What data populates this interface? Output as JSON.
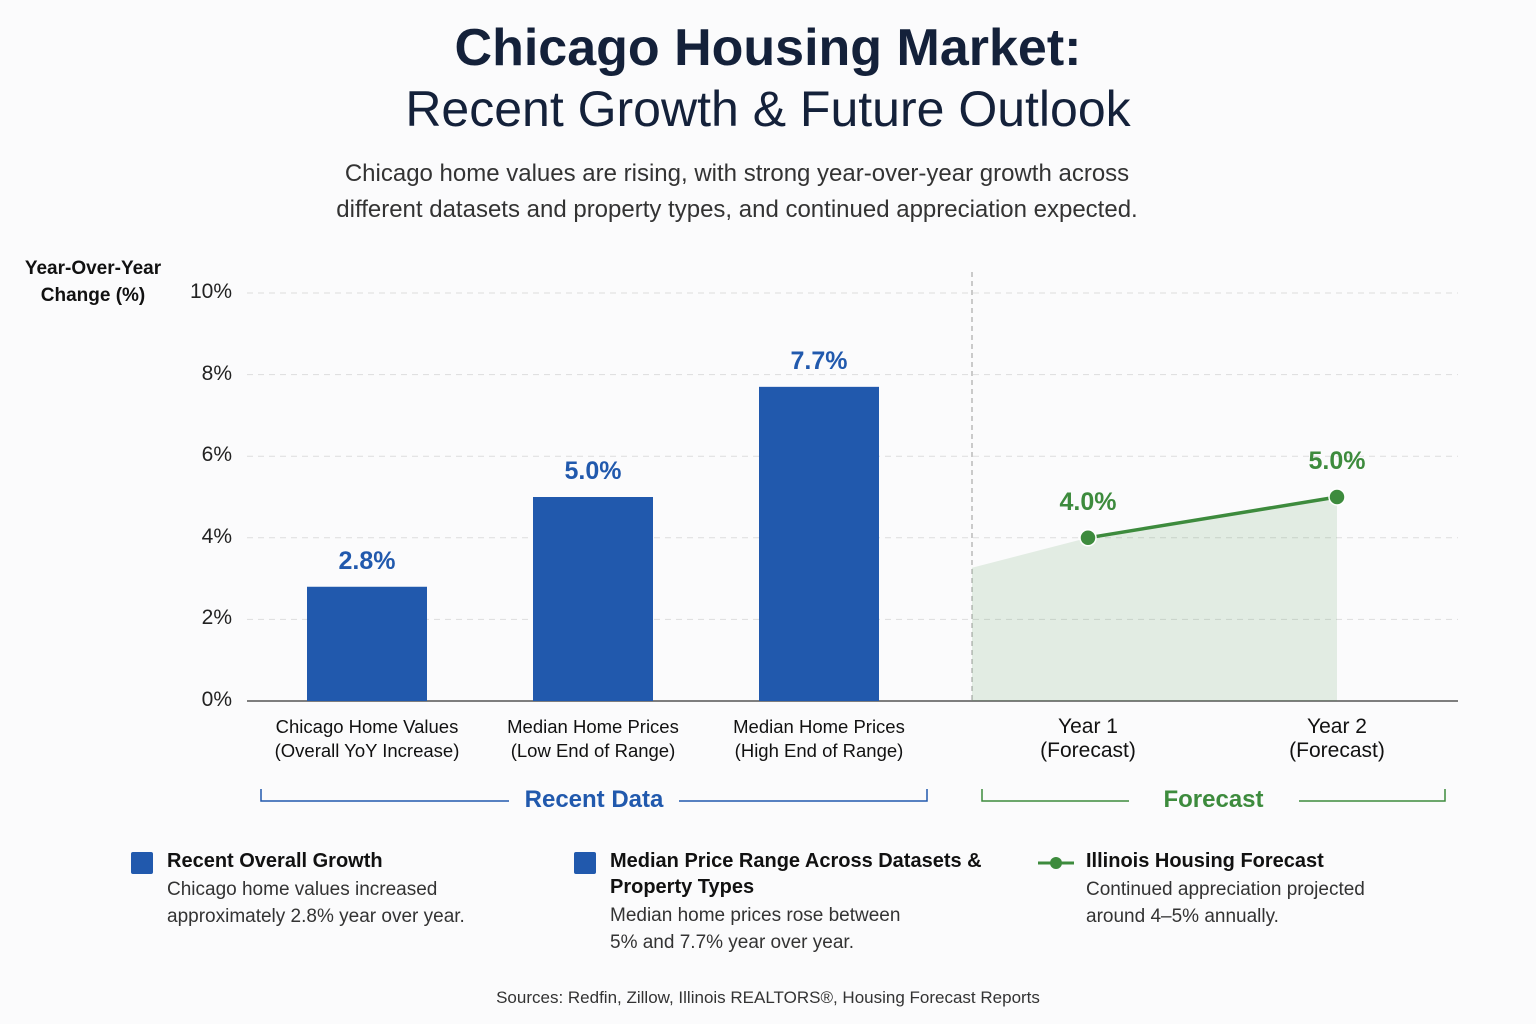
{
  "chart_data": {
    "type": "combo",
    "title": "Chicago Housing Market:",
    "subtitle": "Recent Growth & Future Outlook",
    "description": "Chicago home values are rising, with strong year-over-year growth across\ndifferent datasets and property types, and continued appreciation expected.",
    "y_label": "Year-Over-Year\nChange (%)",
    "categories": [
      "Chicago Home Values\n(Overall YoY Increase)",
      "Median Home Prices\n(Low End of Range)",
      "Median Home Prices\n(High End of Range)",
      "Year 1\n(Forecast)",
      "Year 2\n(Forecast)"
    ],
    "series": [
      {
        "name": "Recent Overall Growth",
        "type": "bar",
        "color": "#2159ad",
        "description": "Chicago home values increased\napproximately 2.8% year over year.",
        "values": [
          2.8,
          null,
          null,
          null,
          null
        ],
        "value_labels": [
          "2.8%",
          null,
          null,
          null,
          null
        ]
      },
      {
        "name": "Median Price Range Across Datasets & Property Types",
        "type": "bar",
        "color": "#2159ad",
        "description": "Median home prices rose between\n5% and 7.7% year over year.",
        "values": [
          null,
          5.0,
          7.7,
          null,
          null
        ],
        "value_labels": [
          null,
          "5.0%",
          "7.7%",
          null,
          null
        ]
      },
      {
        "name": "Illinois Housing Forecast",
        "type": "line",
        "color": "#3d8b3d",
        "description": "Continued appreciation projected\naround 4–5% annually.",
        "values": [
          null,
          null,
          null,
          4.0,
          5.0
        ],
        "value_labels": [
          null,
          null,
          null,
          "4.0%",
          "5.0%"
        ]
      }
    ],
    "groups": [
      {
        "label": "Recent Data",
        "color": "#2159ad"
      },
      {
        "label": "Forecast",
        "color": "#3d8b3d"
      }
    ],
    "ylim": [
      0,
      10
    ],
    "yticks": [
      {
        "value": 0,
        "label": "0%"
      },
      {
        "value": 2,
        "label": "2%"
      },
      {
        "value": 4,
        "label": "4%"
      },
      {
        "value": 6,
        "label": "6%"
      },
      {
        "value": 8,
        "label": "8%"
      },
      {
        "value": 10,
        "label": "10%"
      }
    ],
    "grid": true,
    "source": "Sources: Redfin, Zillow, Illinois REALTORS®, Housing Forecast Reports"
  }
}
